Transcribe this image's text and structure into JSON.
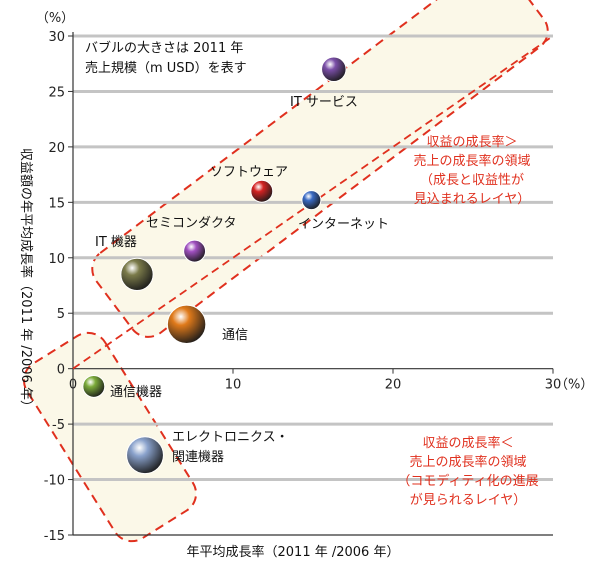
{
  "chart_data": {
    "type": "scatter",
    "bubble_note": [
      "バブルの大きさは 2011 年",
      "売上規模（m USD）を表す"
    ],
    "xlabel": "年平均成長率（2011 年 /2006 年）",
    "ylabel": "収益額の年平均成長率（2011 年 /2006 年）",
    "x_unit": "（%）",
    "y_unit": "（%）",
    "xlim": [
      0,
      30
    ],
    "ylim": [
      -15,
      30
    ],
    "x_ticks": [
      0,
      10,
      20,
      30
    ],
    "y_ticks": [
      -15,
      -10,
      -5,
      0,
      5,
      10,
      15,
      20,
      25,
      30
    ],
    "grid": "horizontal",
    "reference_line": {
      "style": "dashed",
      "color": "#e0301e",
      "from": [
        0,
        0
      ],
      "to": [
        30,
        30
      ]
    },
    "points": [
      {
        "name": "IT サービス",
        "x": 16.3,
        "y": 27.0,
        "color": "#7b4fa8",
        "size": 1.5
      },
      {
        "name": "ソフトウェア",
        "x": 11.8,
        "y": 16.0,
        "color": "#d42222",
        "size": 1.2
      },
      {
        "name": "インターネット",
        "x": 14.9,
        "y": 15.2,
        "color": "#3a6bc4",
        "size": 0.9
      },
      {
        "name": "セミコンダクタ",
        "x": 7.6,
        "y": 10.6,
        "color": "#a050c0",
        "size": 1.2
      },
      {
        "name": "IT 機器",
        "x": 4.0,
        "y": 8.5,
        "color": "#7b7b4a",
        "size": 2.6
      },
      {
        "name": "通信",
        "x": 7.1,
        "y": 4.0,
        "color": "#e07a1a",
        "size": 3.7
      },
      {
        "name": "通信機器",
        "x": 1.3,
        "y": -1.6,
        "color": "#7cab3a",
        "size": 1.2
      },
      {
        "name": "エレクトロニクス・関連機器",
        "x": 4.5,
        "y": -7.8,
        "color": "#8aa2cc",
        "size": 3.4
      }
    ],
    "regions": [
      {
        "name": "upper",
        "color": "#e0301e",
        "text": [
          "収益の成長率＞",
          "売上の成長率の領域",
          "（成長と収益性が",
          "見込まれるレイヤ）"
        ]
      },
      {
        "name": "lower",
        "color": "#e0301e",
        "text": [
          "収益の成長率＜",
          "売上の成長率の領域",
          "（コモディティ化の進展",
          "が見られるレイヤ）"
        ]
      }
    ]
  }
}
